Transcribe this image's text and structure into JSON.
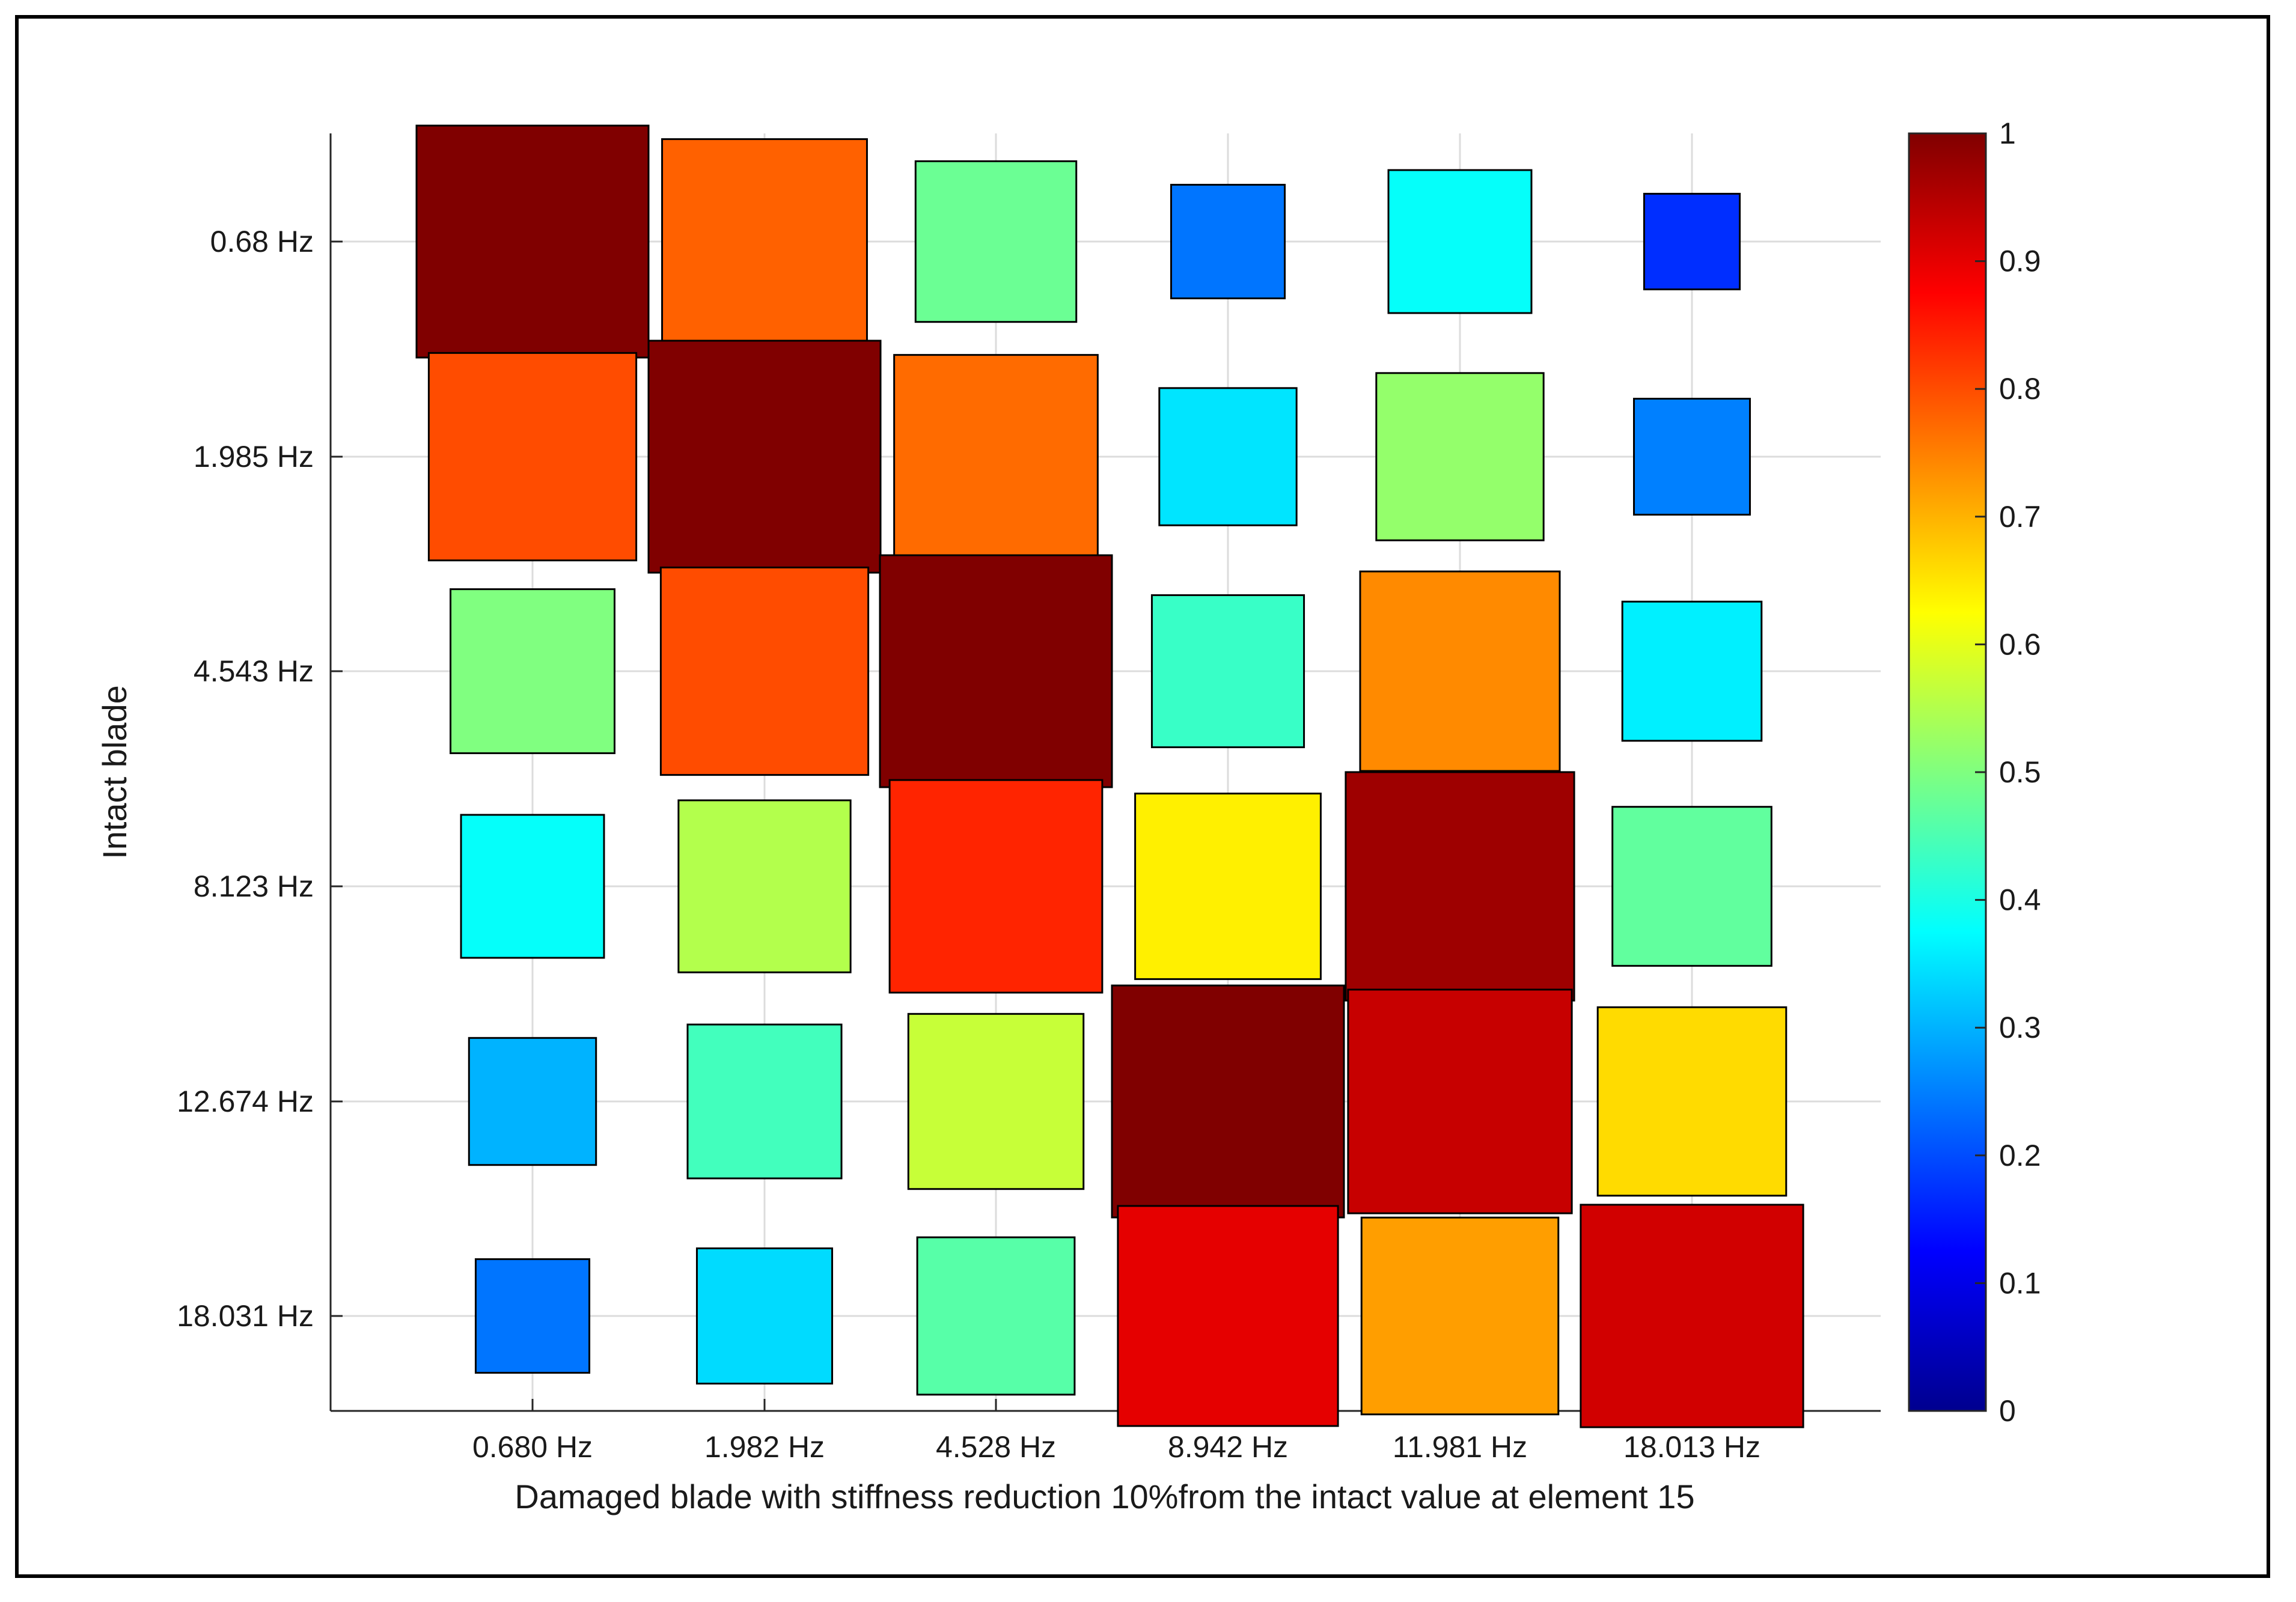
{
  "chart_data": {
    "type": "heatmap",
    "title": "",
    "xlabel": "Damaged blade with stiffness reduction 10%from the intact value at element 15",
    "ylabel": "Intact blade",
    "x_categories": [
      "0.680 Hz",
      "1.982 Hz",
      "4.528 Hz",
      "8.942 Hz",
      "11.981 Hz",
      "18.013 Hz"
    ],
    "y_categories": [
      "0.68 Hz",
      "1.985 Hz",
      "4.543 Hz",
      "8.123 Hz",
      "12.674 Hz",
      "18.031 Hz"
    ],
    "values": [
      [
        1.0,
        0.78,
        0.48,
        0.24,
        0.38,
        0.17
      ],
      [
        0.8,
        1.0,
        0.77,
        0.35,
        0.52,
        0.25
      ],
      [
        0.5,
        0.8,
        1.0,
        0.43,
        0.74,
        0.36
      ],
      [
        0.38,
        0.55,
        0.84,
        0.64,
        0.97,
        0.47
      ],
      [
        0.3,
        0.44,
        0.57,
        1.0,
        0.93,
        0.66
      ],
      [
        0.24,
        0.34,
        0.46,
        0.9,
        0.72,
        0.92
      ]
    ],
    "colorbar": {
      "range": [
        0,
        1
      ],
      "ticks": [
        "0",
        "0.1",
        "0.2",
        "0.3",
        "0.4",
        "0.5",
        "0.6",
        "0.7",
        "0.8",
        "0.9",
        "1"
      ],
      "colormap": "jet"
    },
    "grid": true
  }
}
